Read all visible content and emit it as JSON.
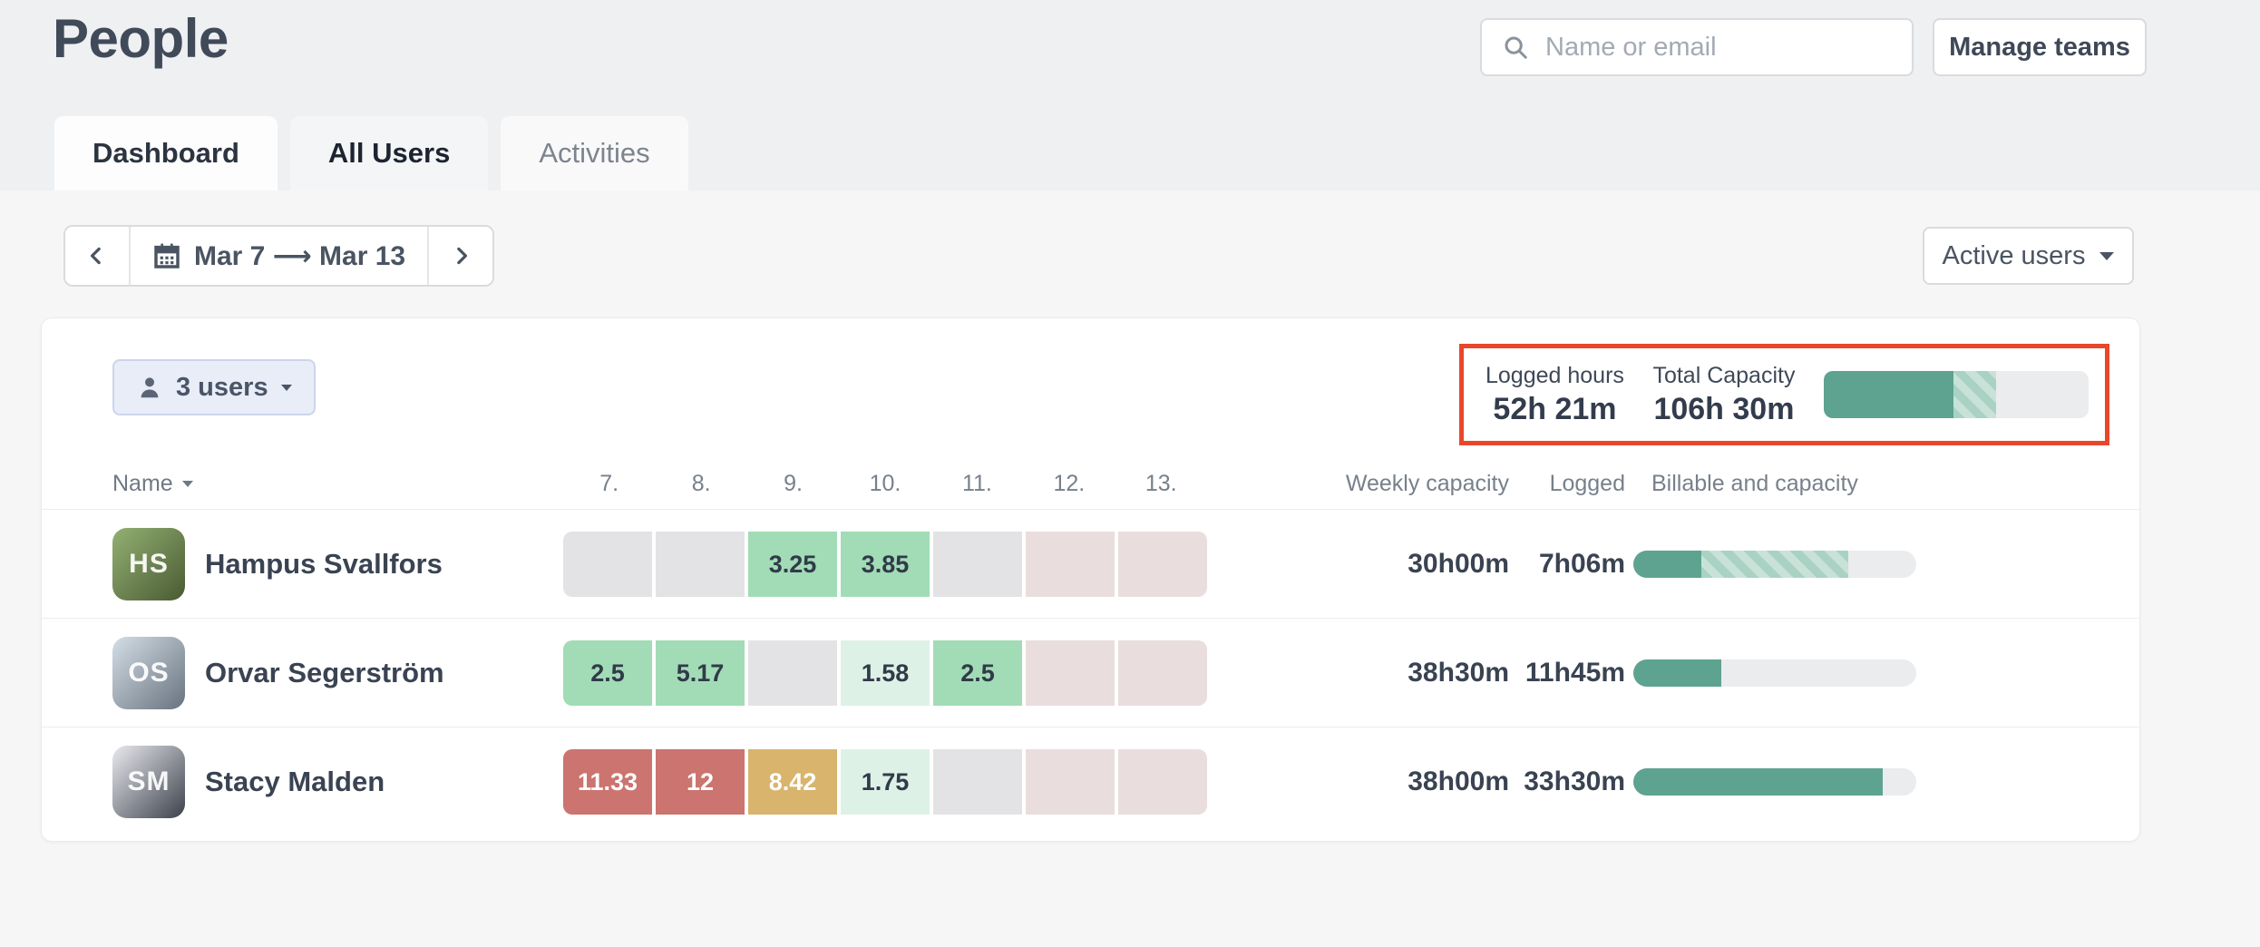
{
  "page": {
    "title": "People"
  },
  "topbar": {
    "search_placeholder": "Name or email",
    "manage_teams_label": "Manage teams"
  },
  "tabs": [
    {
      "label": "Dashboard"
    },
    {
      "label": "All Users"
    },
    {
      "label": "Activities"
    }
  ],
  "toolbar": {
    "date_range": "Mar 7 ⟶ Mar 13",
    "filter_label": "Active users"
  },
  "colors": {
    "accent_green": "#5da390",
    "highlight_red": "#e8472c",
    "cell_green": "#a1dcb6",
    "cell_palegreen": "#def1e6",
    "cell_red": "#cb7470",
    "cell_gold": "#d8b46c",
    "cell_gray": "#e3e3e5",
    "cell_weekend": "#e9dedd"
  },
  "panel": {
    "users_button_label": "3 users",
    "summary": {
      "logged_label": "Logged hours",
      "logged_value": "52h 21m",
      "capacity_label": "Total Capacity",
      "capacity_value": "106h 30m",
      "bar": {
        "solid_pct": 49,
        "hatched_pct": 16
      }
    },
    "table": {
      "headers": {
        "name": "Name",
        "days": [
          "7.",
          "8.",
          "9.",
          "10.",
          "11.",
          "12.",
          "13."
        ],
        "weekly_capacity": "Weekly capacity",
        "logged": "Logged",
        "billable": "Billable and capacity"
      },
      "rows": [
        {
          "name": "Hampus Svallfors",
          "initials": "HS",
          "avatar_bg": "linear-gradient(135deg,#93b173 0%,#4a5a33 100%)",
          "cells": [
            {
              "value": "",
              "type": "empty"
            },
            {
              "value": "",
              "type": "empty"
            },
            {
              "value": "3.25",
              "type": "green"
            },
            {
              "value": "3.85",
              "type": "green"
            },
            {
              "value": "",
              "type": "empty"
            },
            {
              "value": "",
              "type": "weekend"
            },
            {
              "value": "",
              "type": "weekend"
            }
          ],
          "weekly_capacity": "30h00m",
          "logged": "7h06m",
          "bar": {
            "solid_pct": 24,
            "hatched_pct": 52
          }
        },
        {
          "name": "Orvar Segerström",
          "initials": "OS",
          "avatar_bg": "linear-gradient(135deg,#d4dee6 0%,#67737f 100%)",
          "cells": [
            {
              "value": "2.5",
              "type": "green"
            },
            {
              "value": "5.17",
              "type": "green"
            },
            {
              "value": "",
              "type": "empty"
            },
            {
              "value": "1.58",
              "type": "palegreen"
            },
            {
              "value": "2.5",
              "type": "green"
            },
            {
              "value": "",
              "type": "weekend"
            },
            {
              "value": "",
              "type": "weekend"
            }
          ],
          "weekly_capacity": "38h30m",
          "logged": "11h45m",
          "bar": {
            "solid_pct": 31,
            "hatched_pct": 0
          }
        },
        {
          "name": "Stacy Malden",
          "initials": "SM",
          "avatar_bg": "linear-gradient(135deg,#e9eaef 0%,#3c414b 100%)",
          "cells": [
            {
              "value": "11.33",
              "type": "red"
            },
            {
              "value": "12",
              "type": "red"
            },
            {
              "value": "8.42",
              "type": "gold"
            },
            {
              "value": "1.75",
              "type": "palegreen"
            },
            {
              "value": "",
              "type": "empty"
            },
            {
              "value": "",
              "type": "weekend"
            },
            {
              "value": "",
              "type": "weekend"
            }
          ],
          "weekly_capacity": "38h00m",
          "logged": "33h30m",
          "bar": {
            "solid_pct": 88,
            "hatched_pct": 0
          }
        }
      ]
    }
  }
}
